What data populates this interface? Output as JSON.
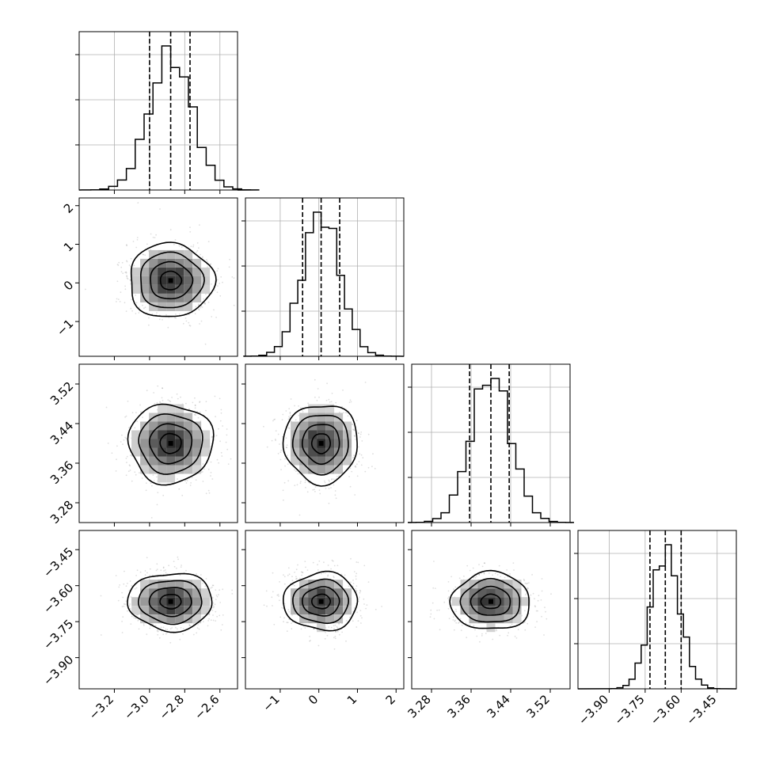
{
  "chart_data": {
    "type": "corner",
    "parameters": [
      {
        "range": [
          -3.4,
          -2.5
        ],
        "ticks": [
          -3.2,
          -3.0,
          -2.8,
          -2.6
        ],
        "tick_labels": [
          "−3.2",
          "−3.0",
          "−2.8",
          "−2.6"
        ],
        "mean": -2.88,
        "sigma": 0.12,
        "quantiles": [
          -3.0,
          -2.88,
          -2.77
        ]
      },
      {
        "range": [
          -1.9,
          2.2
        ],
        "ticks": [
          -1,
          0,
          1,
          2
        ],
        "tick_labels": [
          "−1",
          "0",
          "1",
          "2"
        ],
        "mean": 0.06,
        "sigma": 0.48,
        "quantiles": [
          -0.42,
          0.06,
          0.54
        ]
      },
      {
        "range": [
          3.24,
          3.56
        ],
        "ticks": [
          3.28,
          3.36,
          3.44,
          3.52
        ],
        "tick_labels": [
          "3.28",
          "3.36",
          "3.44",
          "3.52"
        ],
        "mean": 3.4,
        "sigma": 0.04,
        "quantiles": [
          3.357,
          3.4,
          3.437
        ]
      },
      {
        "range": [
          -4.03,
          -3.37
        ],
        "ticks": [
          -3.9,
          -3.75,
          -3.6,
          -3.45
        ],
        "tick_labels": [
          "−3.90",
          "−3.75",
          "−3.60",
          "−3.45"
        ],
        "mean": -3.666,
        "sigma": 0.06,
        "quantiles": [
          -3.73,
          -3.666,
          -3.6
        ]
      }
    ],
    "histogram": {
      "bins": 20,
      "grid": true
    },
    "contour_levels_sigma": [
      0.5,
      1.0,
      1.5,
      2.0
    ],
    "layout": "lower-triangle",
    "grid": true
  }
}
